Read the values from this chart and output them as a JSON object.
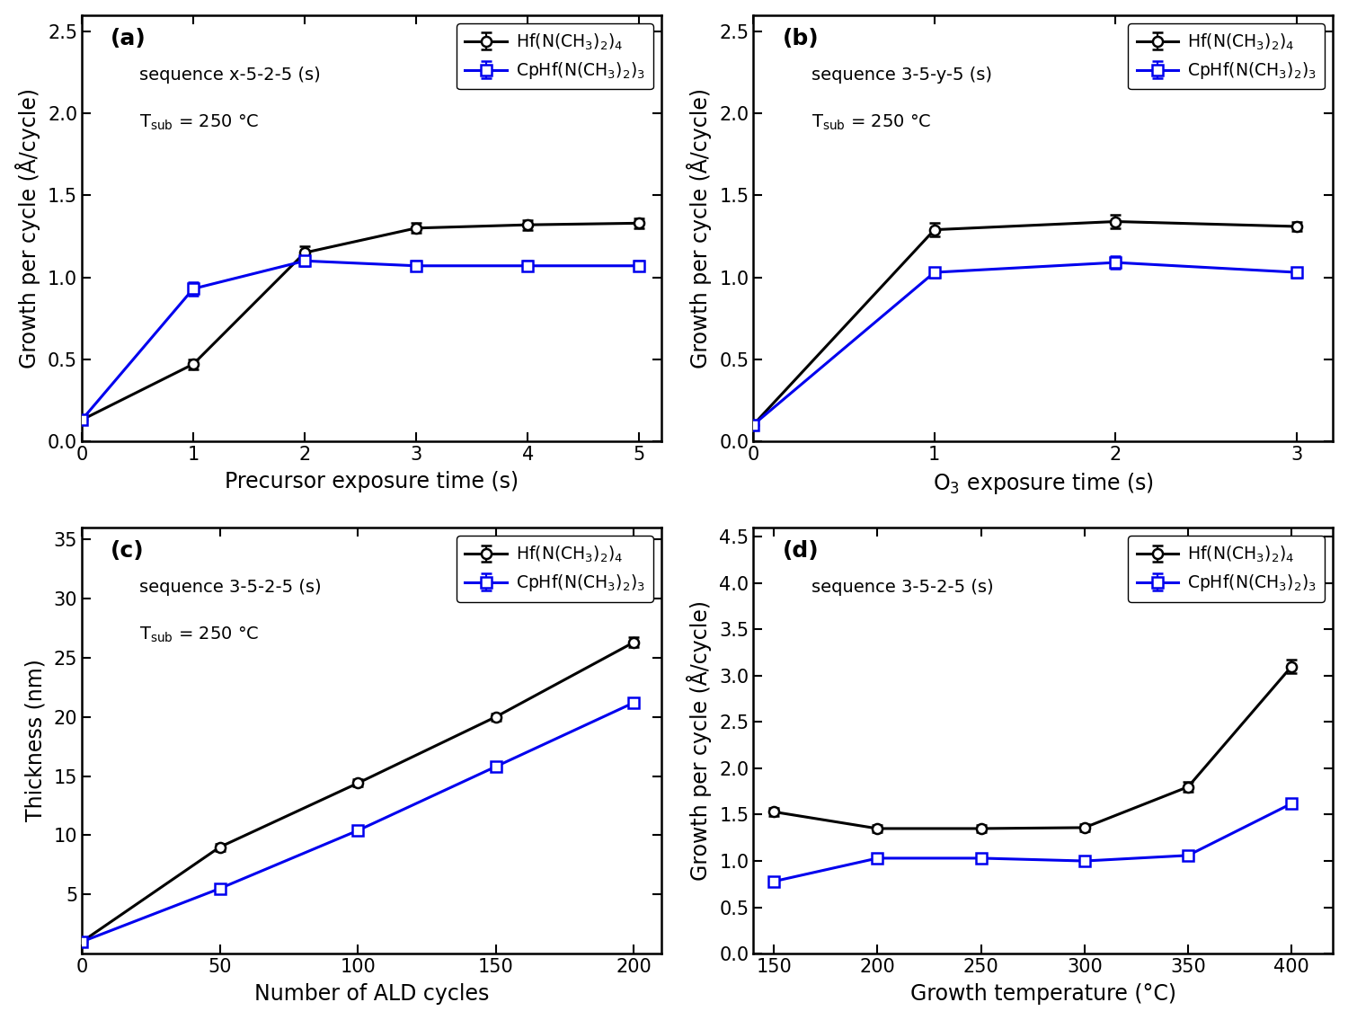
{
  "panel_a": {
    "label": "(a)",
    "xlabel": "Precursor exposure time (s)",
    "ylabel": "Growth per cycle (Å/cycle)",
    "ann1": "sequence x-5-2-5 (s)",
    "ann2": "T",
    "ann2_sub": "sub",
    "ann2_rest": " = 250 °C",
    "xlim": [
      0,
      5.2
    ],
    "ylim": [
      0,
      2.6
    ],
    "xticks": [
      0,
      1,
      2,
      3,
      4,
      5
    ],
    "yticks": [
      0.0,
      0.5,
      1.0,
      1.5,
      2.0,
      2.5
    ],
    "black_x": [
      0,
      1,
      2,
      3,
      4,
      5
    ],
    "black_y": [
      0.13,
      0.47,
      1.15,
      1.3,
      1.32,
      1.33
    ],
    "black_yerr": [
      0.02,
      0.03,
      0.04,
      0.03,
      0.03,
      0.03
    ],
    "blue_x": [
      0,
      1,
      2,
      3,
      4,
      5
    ],
    "blue_y": [
      0.13,
      0.93,
      1.1,
      1.07,
      1.07,
      1.07
    ],
    "blue_yerr": [
      0.02,
      0.04,
      0.03,
      0.03,
      0.03,
      0.03
    ]
  },
  "panel_b": {
    "label": "(b)",
    "xlabel": "O$_3$ exposure time (s)",
    "ylabel": "Growth per cycle (Å/cycle)",
    "ann1": "sequence 3-5-y-5 (s)",
    "ann2": "T",
    "ann2_sub": "sub",
    "ann2_rest": " = 250 °C",
    "xlim": [
      0,
      3.2
    ],
    "ylim": [
      0,
      2.6
    ],
    "xticks": [
      0,
      1,
      2,
      3
    ],
    "yticks": [
      0.0,
      0.5,
      1.0,
      1.5,
      2.0,
      2.5
    ],
    "black_x": [
      0,
      1,
      2,
      3
    ],
    "black_y": [
      0.1,
      1.29,
      1.34,
      1.31
    ],
    "black_yerr": [
      0.02,
      0.04,
      0.04,
      0.03
    ],
    "blue_x": [
      0,
      1,
      2,
      3
    ],
    "blue_y": [
      0.1,
      1.03,
      1.09,
      1.03
    ],
    "blue_yerr": [
      0.02,
      0.03,
      0.04,
      0.03
    ]
  },
  "panel_c": {
    "label": "(c)",
    "xlabel": "Number of ALD cycles",
    "ylabel": "Thickness (nm)",
    "ann1": "sequence 3-5-2-5 (s)",
    "ann2": "T",
    "ann2_sub": "sub",
    "ann2_rest": " = 250 °C",
    "xlim": [
      0,
      210
    ],
    "ylim": [
      0,
      36
    ],
    "xticks": [
      0,
      50,
      100,
      150,
      200
    ],
    "yticks": [
      5,
      10,
      15,
      20,
      25,
      30,
      35
    ],
    "black_x": [
      0,
      50,
      100,
      150,
      200
    ],
    "black_y": [
      1.0,
      9.0,
      14.4,
      20.0,
      26.3
    ],
    "black_yerr": [
      0.1,
      0.3,
      0.3,
      0.3,
      0.4
    ],
    "blue_x": [
      0,
      50,
      100,
      150,
      200
    ],
    "blue_y": [
      1.0,
      5.5,
      10.4,
      15.8,
      21.2
    ],
    "blue_yerr": [
      0.1,
      0.2,
      0.3,
      0.3,
      0.4
    ]
  },
  "panel_d": {
    "label": "(d)",
    "xlabel": "Growth temperature (°C)",
    "ylabel": "Growth per cycle (Å/cycle)",
    "ann1": "sequence 3-5-2-5 (s)",
    "ann2": null,
    "xlim": [
      140,
      420
    ],
    "ylim": [
      0,
      4.6
    ],
    "xticks": [
      150,
      200,
      250,
      300,
      350,
      400
    ],
    "yticks": [
      0.0,
      0.5,
      1.0,
      1.5,
      2.0,
      2.5,
      3.0,
      3.5,
      4.0,
      4.5
    ],
    "black_x": [
      150,
      200,
      250,
      300,
      350,
      400
    ],
    "black_y": [
      1.53,
      1.35,
      1.35,
      1.36,
      1.8,
      3.1
    ],
    "black_yerr": [
      0.04,
      0.04,
      0.04,
      0.04,
      0.05,
      0.07
    ],
    "blue_x": [
      150,
      200,
      250,
      300,
      350,
      400
    ],
    "blue_y": [
      0.78,
      1.03,
      1.03,
      1.0,
      1.06,
      1.62
    ],
    "blue_yerr": [
      0.03,
      0.04,
      0.04,
      0.03,
      0.04,
      0.05
    ]
  },
  "legend_black": "Hf(N(CH$_3$)$_2$)$_4$",
  "legend_blue": "CpHf(N(CH$_3$)$_2$)$_3$",
  "black_color": "#000000",
  "blue_color": "#0000EE",
  "lw": 2.2,
  "ms": 8,
  "capsize": 4,
  "elinewidth": 1.5,
  "markeredgewidth": 1.8
}
